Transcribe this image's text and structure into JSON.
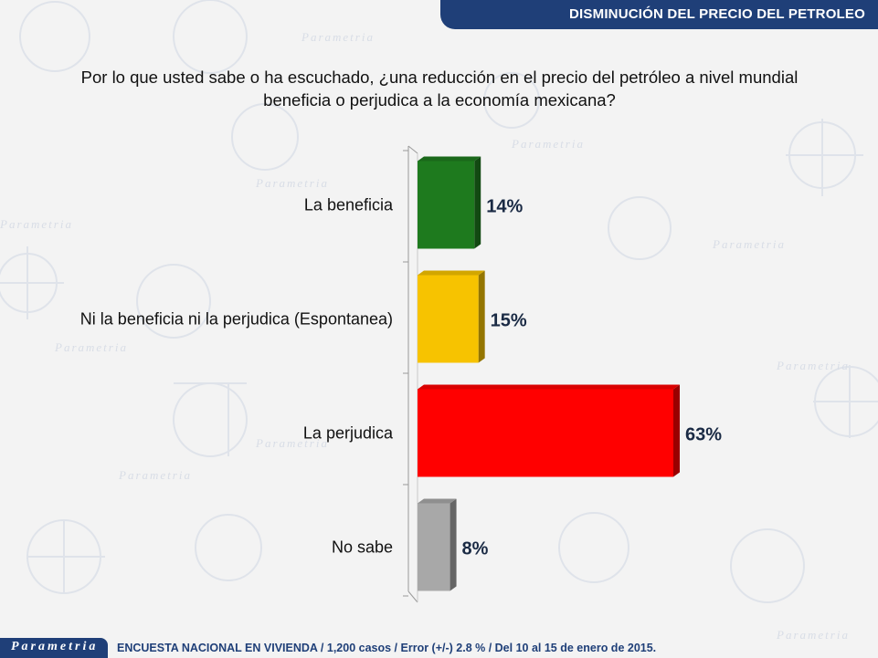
{
  "header": {
    "title": "DISMINUCIÓN DEL PRECIO DEL PETROLEO"
  },
  "question": {
    "line1": "Por lo que usted sabe o ha escuchado, ¿una reducción en el precio del petróleo a nivel mundial",
    "line2": "beneficia o perjudica a la economía mexicana?"
  },
  "watermark": {
    "word": "Parametria"
  },
  "chart_data": {
    "type": "bar",
    "orientation": "horizontal",
    "categories": [
      "La beneficia",
      "Ni la beneficia ni la perjudica (Espontanea)",
      "La perjudica",
      "No sabe"
    ],
    "values": [
      14,
      15,
      63,
      8
    ],
    "value_labels": [
      "14%",
      "15%",
      "63%",
      "8%"
    ],
    "colors": [
      "#1e7a1e",
      "#f7c300",
      "#ff0000",
      "#a8a8a8"
    ],
    "xlim": [
      0,
      63
    ],
    "grid": false,
    "title": "",
    "xlabel": "",
    "ylabel": ""
  },
  "footer": {
    "logo": "Parametria",
    "note": "ENCUESTA NACIONAL EN VIVIENDA / 1,200 casos / Error (+/-) 2.8 % / Del 10 al 15 de enero de 2015."
  }
}
